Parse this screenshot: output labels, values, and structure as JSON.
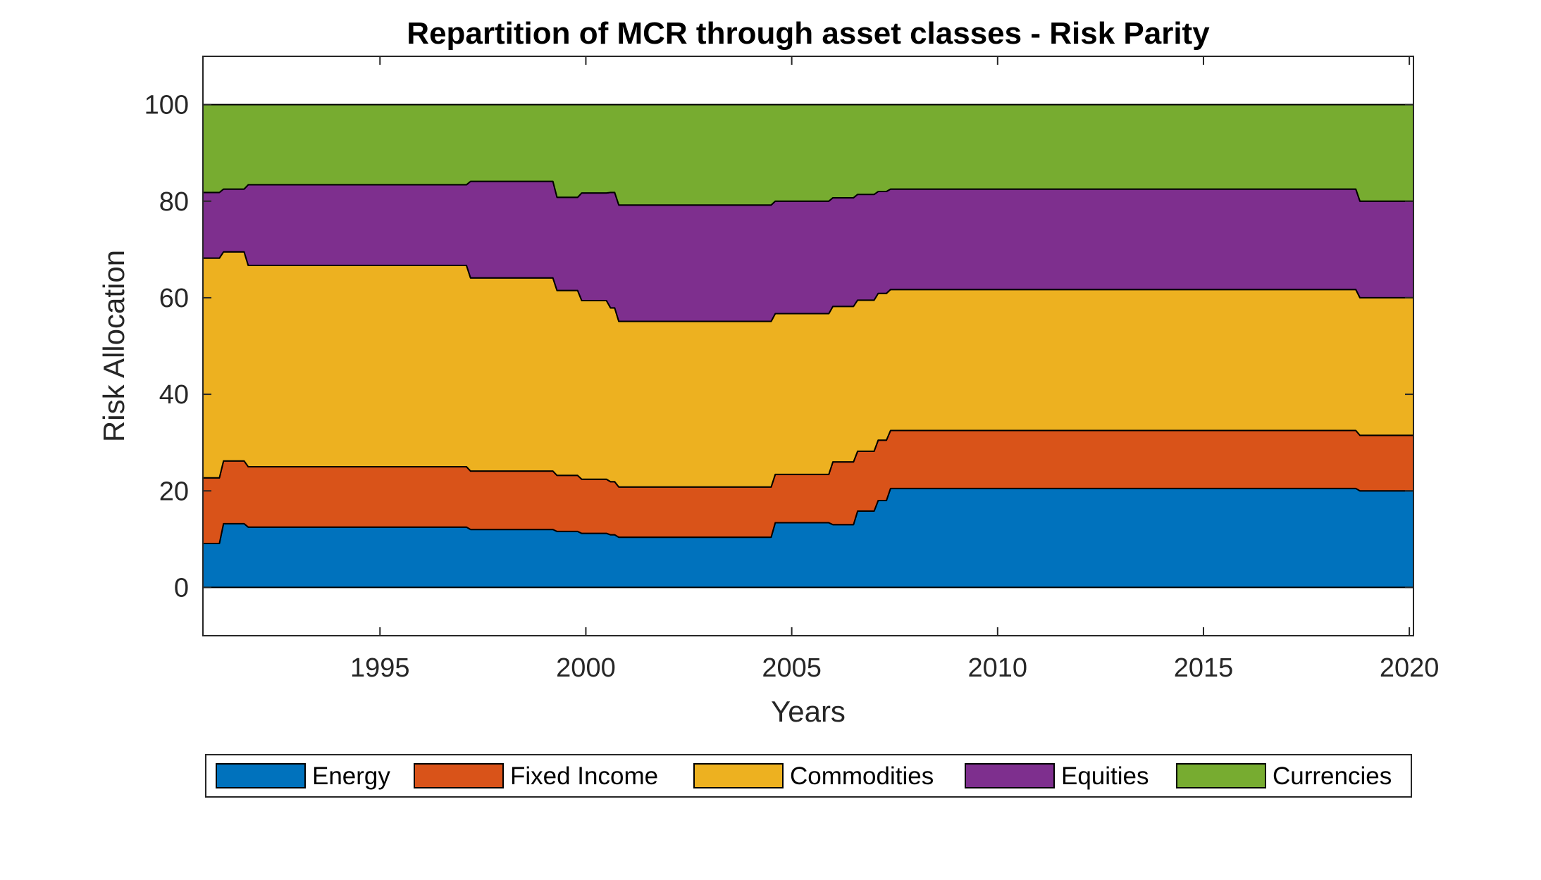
{
  "chart_data": {
    "type": "area",
    "title": "Repartition of MCR through asset classes - Risk Parity",
    "xlabel": "Years",
    "ylabel": "Risk Allocation",
    "xlim": [
      1990.7,
      2020.1
    ],
    "ylim": [
      -10,
      110
    ],
    "x_ticks": [
      1995,
      2000,
      2005,
      2010,
      2015,
      2020
    ],
    "y_ticks": [
      0,
      20,
      40,
      60,
      80,
      100
    ],
    "legend_position": "bottom",
    "stacked": true,
    "x": [
      1990.7,
      1991.1,
      1991.2,
      1991.7,
      1991.8,
      1997.1,
      1997.2,
      1999.2,
      1999.3,
      1999.8,
      1999.9,
      2000.5,
      2000.6,
      2000.7,
      2000.8,
      2004.5,
      2004.6,
      2005.9,
      2006.0,
      2006.5,
      2006.6,
      2007.0,
      2007.1,
      2007.3,
      2007.4,
      2007.5,
      2007.6,
      2018.7,
      2018.8,
      2019.1,
      2020.1
    ],
    "series": [
      {
        "name": "Energy",
        "color": "#0072BD",
        "values": [
          9.1,
          9.1,
          13.2,
          13.2,
          12.5,
          12.5,
          12.0,
          12.0,
          11.6,
          11.6,
          11.2,
          11.2,
          10.9,
          10.9,
          10.4,
          10.4,
          13.4,
          13.4,
          13.0,
          13.0,
          15.8,
          15.8,
          18.0,
          18.0,
          20.5,
          20.5,
          20.5,
          20.5,
          20.0,
          20.0,
          20.0
        ]
      },
      {
        "name": "Fixed Income",
        "color": "#D95319",
        "values": [
          13.6,
          13.6,
          13.0,
          13.0,
          12.5,
          12.5,
          12.1,
          12.1,
          11.6,
          11.6,
          11.2,
          11.2,
          11.0,
          11.0,
          10.4,
          10.4,
          10.0,
          10.0,
          13.0,
          13.0,
          12.4,
          12.4,
          12.5,
          12.5,
          12.0,
          12.0,
          12.0,
          12.0,
          11.5,
          11.5,
          11.5
        ]
      },
      {
        "name": "Commodities",
        "color": "#EDB120",
        "values": [
          45.5,
          45.5,
          43.3,
          43.3,
          41.7,
          41.7,
          40.0,
          40.0,
          38.3,
          38.3,
          37.0,
          37.0,
          36.0,
          36.0,
          34.3,
          34.3,
          33.3,
          33.3,
          32.2,
          32.2,
          31.3,
          31.3,
          30.4,
          30.4,
          29.2,
          29.2,
          29.2,
          29.2,
          28.5,
          28.5,
          28.5
        ]
      },
      {
        "name": "Equities",
        "color": "#7E2F8E",
        "values": [
          13.6,
          13.6,
          13.0,
          13.0,
          16.7,
          16.7,
          20.0,
          20.0,
          19.3,
          19.3,
          22.3,
          22.3,
          23.9,
          23.9,
          24.1,
          24.1,
          23.3,
          23.3,
          22.5,
          22.5,
          21.9,
          21.9,
          21.1,
          21.1,
          20.8,
          20.8,
          20.8,
          20.8,
          20.0,
          20.0,
          20.0
        ]
      },
      {
        "name": "Currencies",
        "color": "#77AC30",
        "values": [
          18.2,
          18.2,
          17.5,
          17.5,
          16.6,
          16.6,
          15.9,
          15.9,
          19.2,
          19.2,
          18.3,
          18.3,
          18.2,
          18.2,
          20.8,
          20.8,
          20.0,
          20.0,
          19.3,
          19.3,
          18.6,
          18.6,
          18.0,
          18.0,
          17.5,
          17.5,
          17.5,
          17.5,
          20.0,
          20.0,
          20.0
        ]
      }
    ]
  }
}
